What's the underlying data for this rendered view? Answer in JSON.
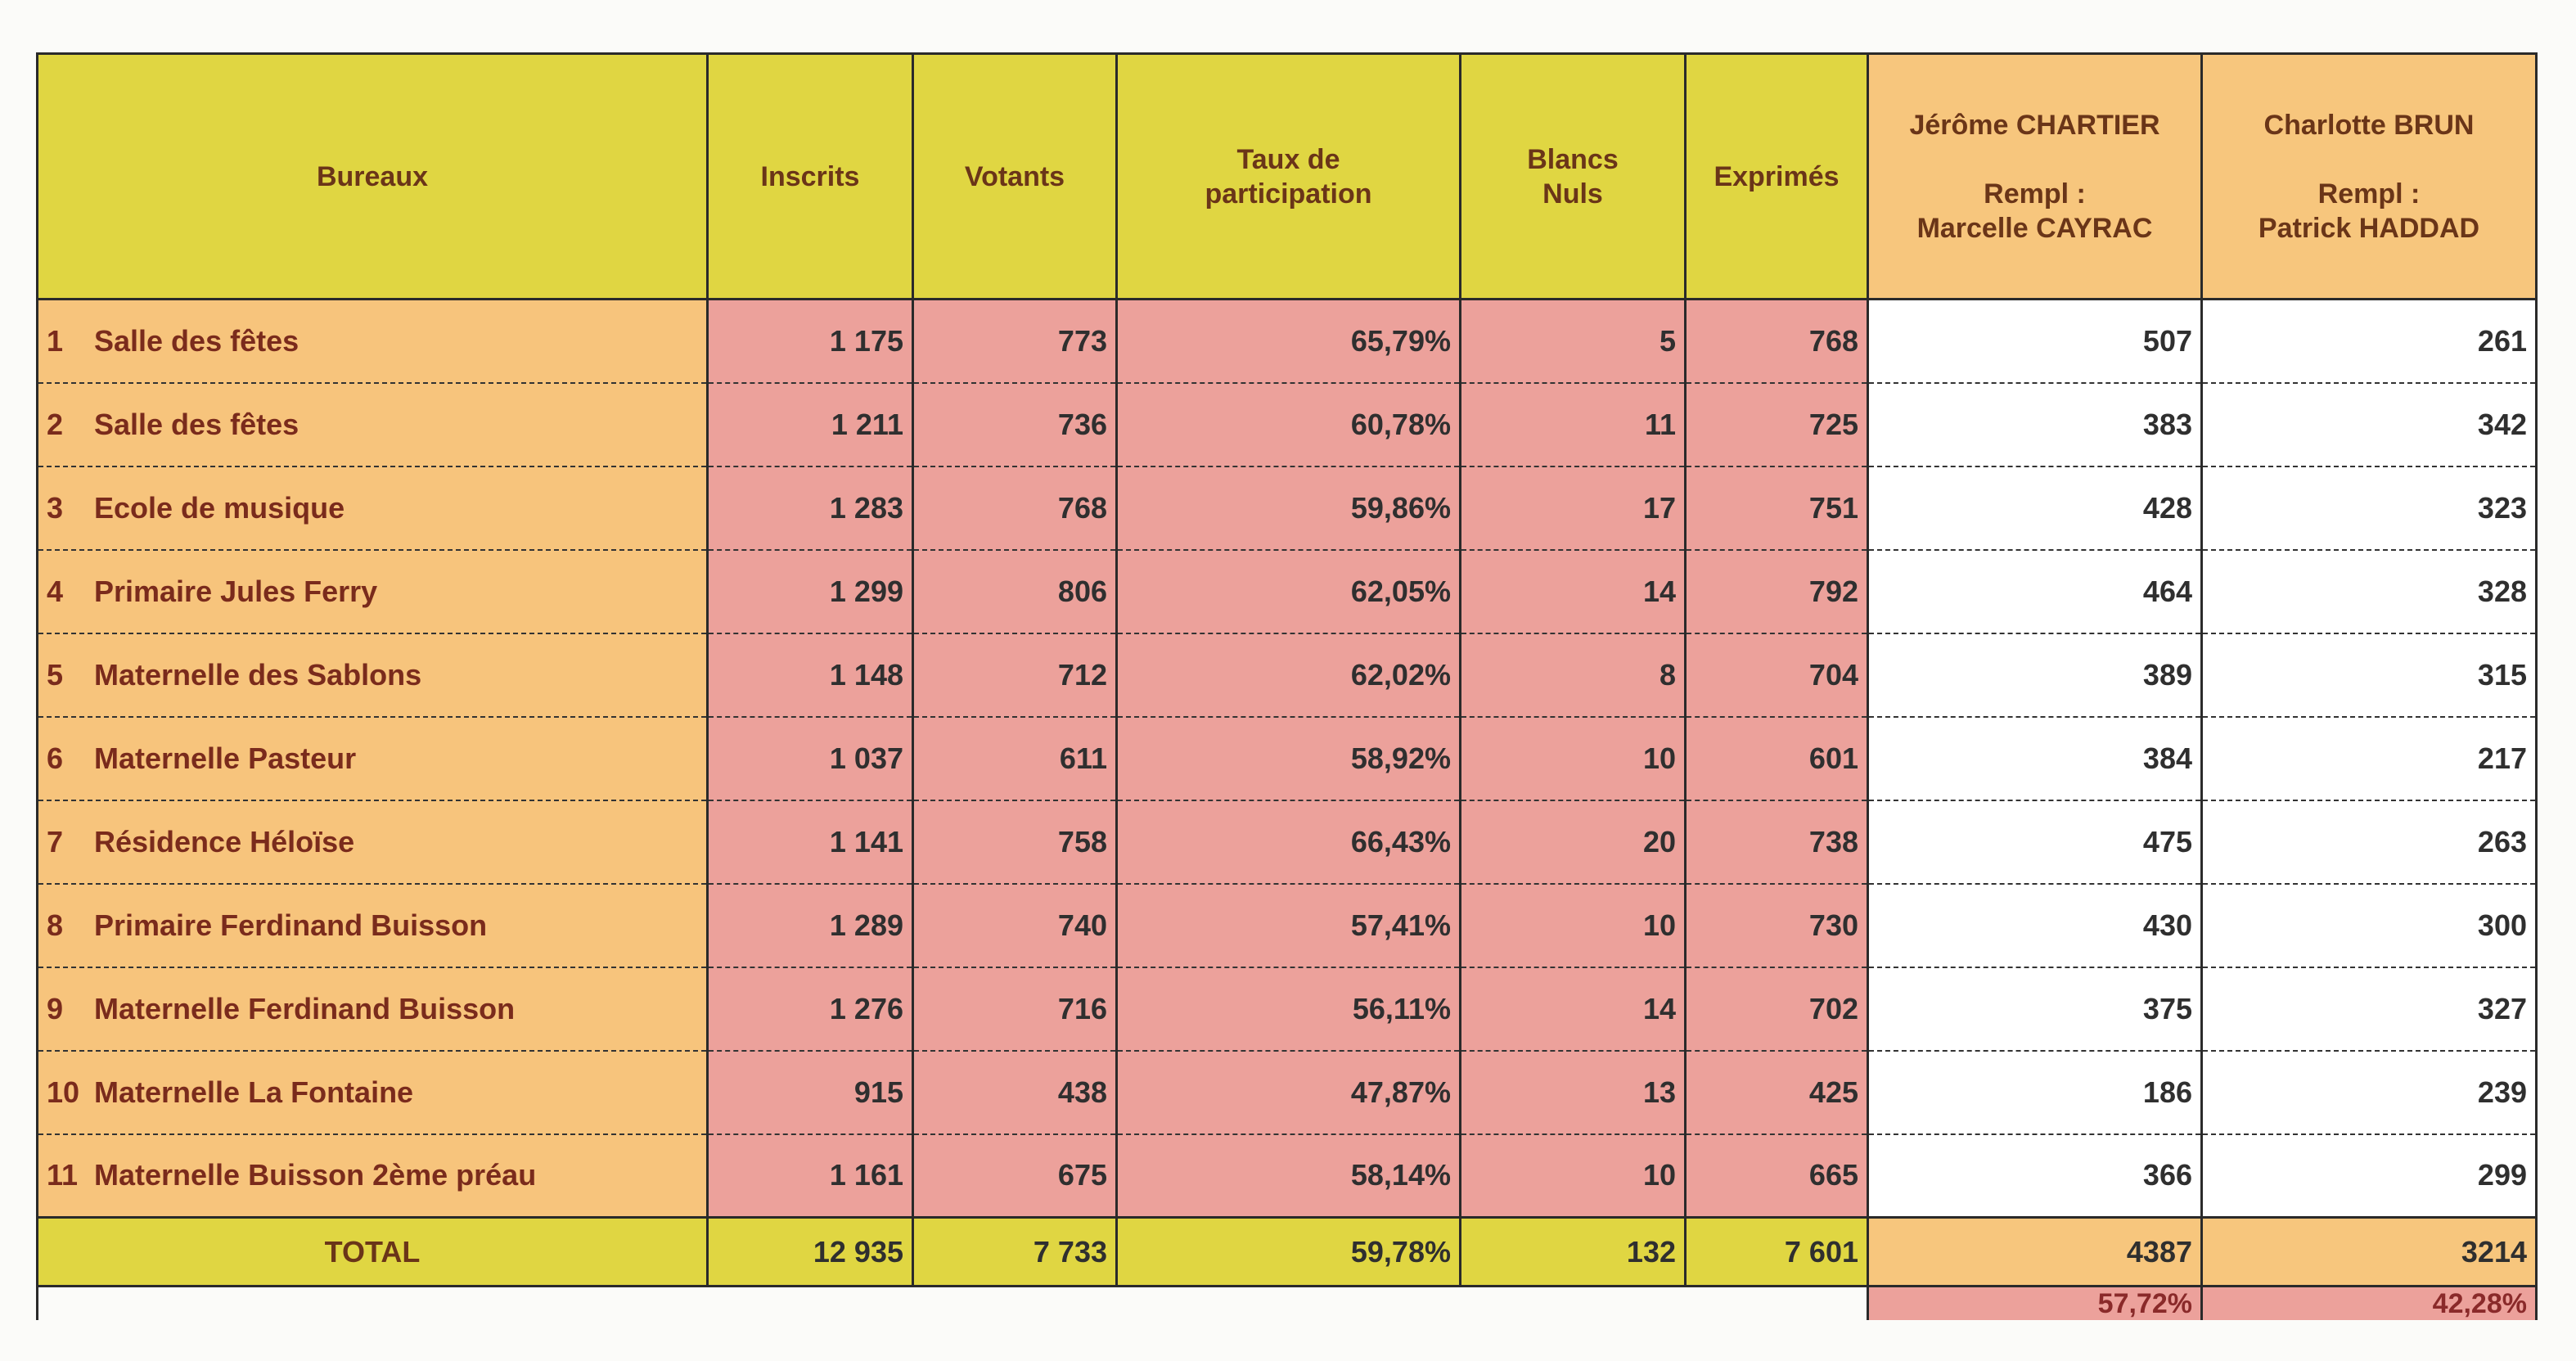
{
  "header": {
    "columns": [
      "Bureaux",
      "Inscrits",
      "Votants",
      "Taux de\nparticipation",
      "Blancs\nNuls",
      "Exprimés"
    ],
    "candidates": [
      {
        "name": "Jérôme CHARTIER",
        "remplacant_label": "Rempl :",
        "remplacant": "Marcelle CAYRAC"
      },
      {
        "name": "Charlotte BRUN",
        "remplacant_label": "Rempl :",
        "remplacant": "Patrick HADDAD"
      }
    ]
  },
  "rows": [
    [
      "1",
      "Salle des fêtes",
      "1 175",
      "773",
      "65,79%",
      "5",
      "768",
      "507",
      "261"
    ],
    [
      "2",
      "Salle des fêtes",
      "1 211",
      "736",
      "60,78%",
      "11",
      "725",
      "383",
      "342"
    ],
    [
      "3",
      "Ecole de musique",
      "1 283",
      "768",
      "59,86%",
      "17",
      "751",
      "428",
      "323"
    ],
    [
      "4",
      "Primaire Jules Ferry",
      "1 299",
      "806",
      "62,05%",
      "14",
      "792",
      "464",
      "328"
    ],
    [
      "5",
      "Maternelle des Sablons",
      "1 148",
      "712",
      "62,02%",
      "8",
      "704",
      "389",
      "315"
    ],
    [
      "6",
      "Maternelle Pasteur",
      "1 037",
      "611",
      "58,92%",
      "10",
      "601",
      "384",
      "217"
    ],
    [
      "7",
      "Résidence Héloïse",
      "1 141",
      "758",
      "66,43%",
      "20",
      "738",
      "475",
      "263"
    ],
    [
      "8",
      "Primaire Ferdinand Buisson",
      "1 289",
      "740",
      "57,41%",
      "10",
      "730",
      "430",
      "300"
    ],
    [
      "9",
      "Maternelle Ferdinand Buisson",
      "1 276",
      "716",
      "56,11%",
      "14",
      "702",
      "375",
      "327"
    ],
    [
      "10",
      "Maternelle La Fontaine",
      "915",
      "438",
      "47,87%",
      "13",
      "425",
      "186",
      "239"
    ],
    [
      "11",
      "Maternelle Buisson 2ème préau",
      "1 161",
      "675",
      "58,14%",
      "10",
      "665",
      "366",
      "299"
    ]
  ],
  "total": {
    "label": "TOTAL",
    "values": [
      "12 935",
      "7 733",
      "59,78%",
      "132",
      "7 601",
      "4387",
      "3214"
    ]
  },
  "percentages": [
    "57,72%",
    "42,28%"
  ]
}
